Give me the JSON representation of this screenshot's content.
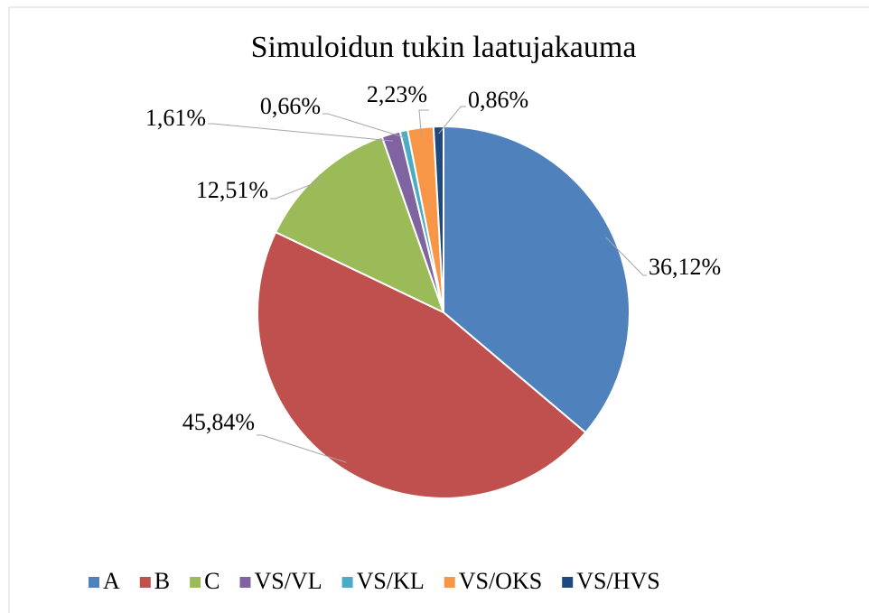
{
  "chart_data": {
    "type": "pie",
    "title": "Simuloidun tukin laatujakauma",
    "categories": [
      "A",
      "B",
      "C",
      "VS/VL",
      "VS/KL",
      "VS/OKS",
      "VS/HVS"
    ],
    "values": [
      36.12,
      45.84,
      12.51,
      1.61,
      0.66,
      2.23,
      0.86
    ],
    "value_labels": [
      "36,12%",
      "45,84%",
      "12,51%",
      "1,61%",
      "0,66%",
      "2,23%",
      "0,86%"
    ],
    "colors": [
      "#4f81bd",
      "#c0504d",
      "#9bbb59",
      "#8064a2",
      "#4bacc6",
      "#f79646",
      "#1f497d"
    ],
    "legend": "bottom"
  }
}
